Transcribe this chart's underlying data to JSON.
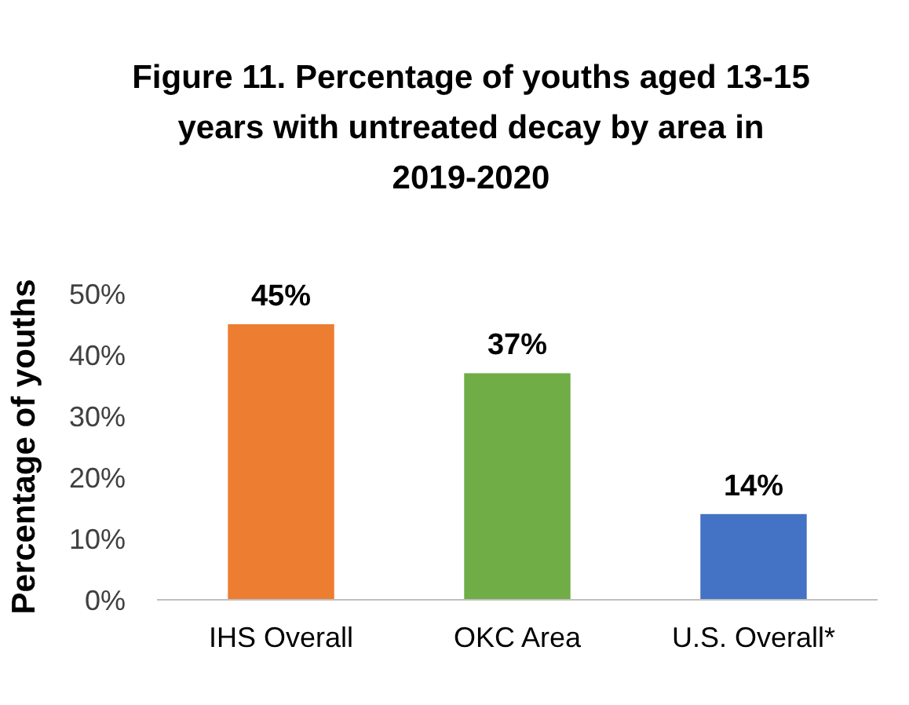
{
  "chart_data": {
    "type": "bar",
    "title": "Figure 11. Percentage of youths aged 13-15 years with untreated decay by area in 2019-2020",
    "ylabel": "Percentage of youths",
    "categories": [
      "IHS Overall",
      "OKC Area",
      "U.S. Overall*"
    ],
    "values": [
      45,
      37,
      14
    ],
    "colors": [
      "#ed7d31",
      "#70ad47",
      "#4472c4"
    ],
    "value_labels": [
      "45%",
      "37%",
      "14%"
    ],
    "ylim": [
      0,
      50
    ],
    "yticks": [
      {
        "value": 0,
        "label": "0%"
      },
      {
        "value": 10,
        "label": "10%"
      },
      {
        "value": 20,
        "label": "20%"
      },
      {
        "value": 30,
        "label": "30%"
      },
      {
        "value": 40,
        "label": "40%"
      },
      {
        "value": 50,
        "label": "50%"
      }
    ],
    "grid": false
  }
}
